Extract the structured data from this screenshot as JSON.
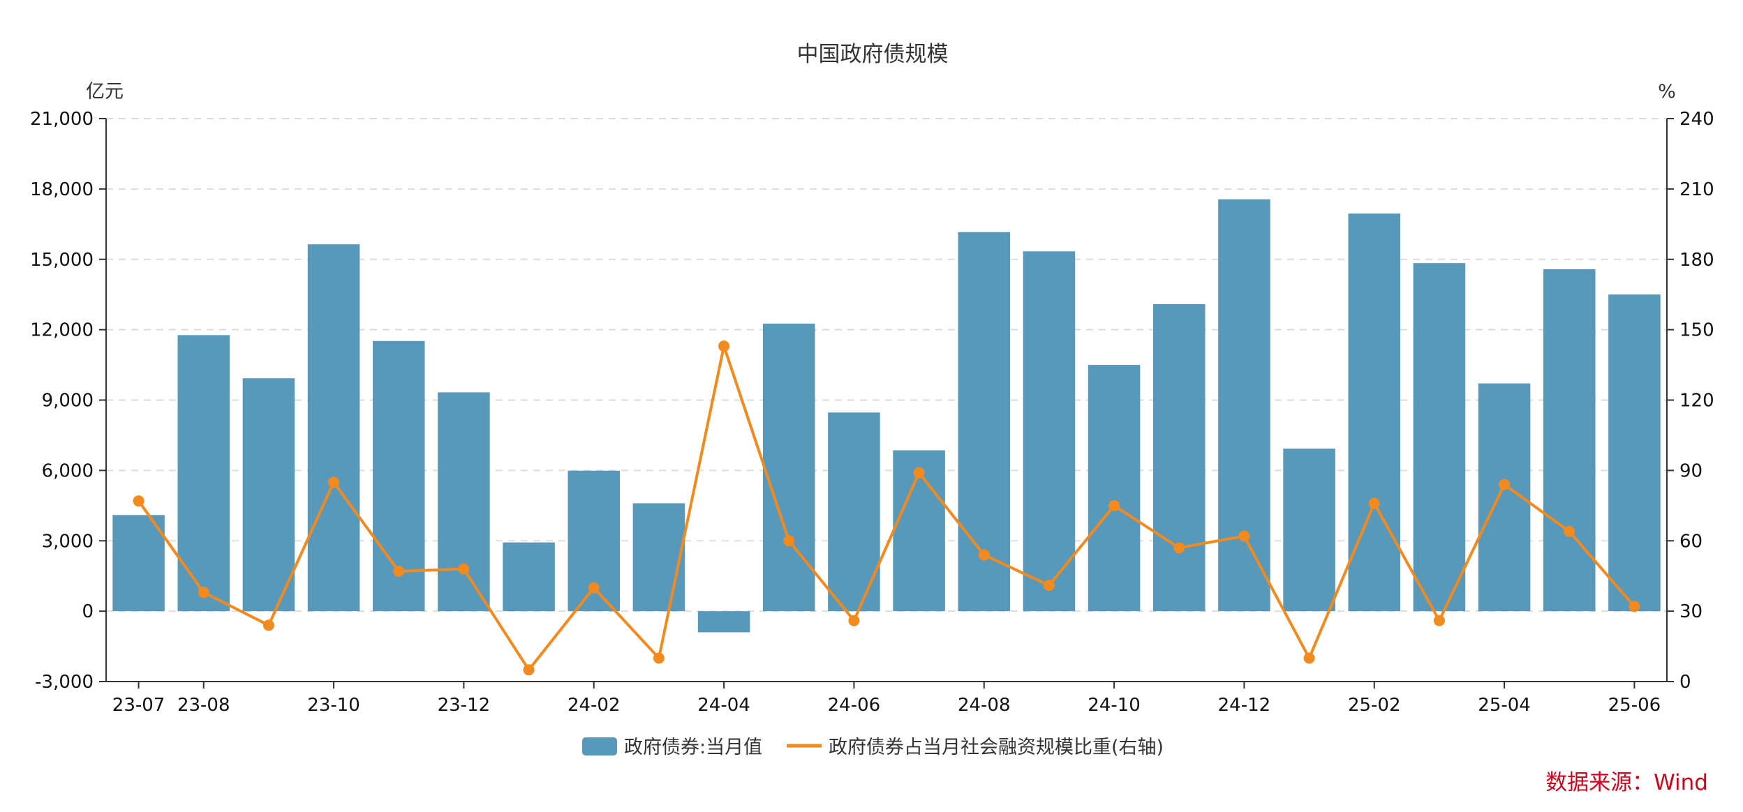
{
  "chart_data": {
    "type": "bar",
    "title": "中国政府债规模",
    "left_axis_unit": "亿元",
    "right_axis_unit": "%",
    "categories": [
      "23-07",
      "23-08",
      "23-09",
      "23-10",
      "23-11",
      "23-12",
      "24-01",
      "24-02",
      "24-03",
      "24-04",
      "24-05",
      "24-06",
      "24-07",
      "24-08",
      "24-09",
      "24-10",
      "24-11",
      "24-12",
      "25-01",
      "25-02",
      "25-03",
      "25-04",
      "25-05",
      "25-06"
    ],
    "x_tick_labels": [
      "23-07",
      "23-08",
      "23-10",
      "23-12",
      "24-02",
      "24-04",
      "24-06",
      "24-08",
      "24-10",
      "24-12",
      "25-02",
      "25-04",
      "25-06"
    ],
    "ylim_left": [
      -3000,
      21000
    ],
    "yticks_left": [
      "-3,000",
      "0",
      "3,000",
      "6,000",
      "9,000",
      "12,000",
      "15,000",
      "18,000",
      "21,000"
    ],
    "ylim_right": [
      0,
      240
    ],
    "yticks_right": [
      "0",
      "30",
      "60",
      "90",
      "120",
      "150",
      "180",
      "210",
      "240"
    ],
    "grid": true,
    "legend_position": "bottom",
    "series": [
      {
        "name": "政府债券:当月值",
        "type": "bar",
        "axis": "left",
        "color": "#5899bb",
        "values": [
          4100,
          11770,
          9930,
          15640,
          11520,
          9330,
          2930,
          5990,
          4600,
          -900,
          12260,
          8470,
          6860,
          16160,
          15340,
          10500,
          13090,
          17560,
          6930,
          16950,
          14840,
          9710,
          14580,
          13500
        ]
      },
      {
        "name": "政府债券占当月社会融资规模比重(右轴)",
        "type": "line",
        "axis": "right",
        "color": "#f28a1e",
        "values": [
          77,
          38,
          24,
          85,
          47,
          48,
          5,
          40,
          10,
          143,
          60,
          26,
          89,
          54,
          41,
          75,
          57,
          62,
          10,
          76,
          26,
          84,
          64,
          32
        ]
      }
    ]
  },
  "source_note": "数据来源：Wind"
}
